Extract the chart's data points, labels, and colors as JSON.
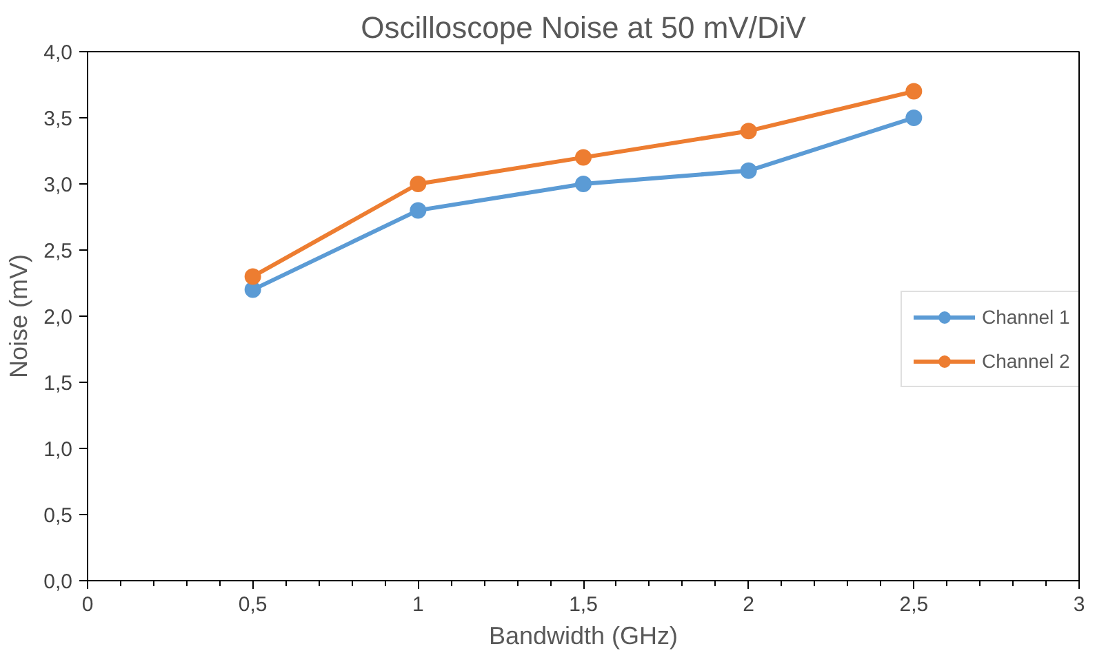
{
  "chart_data": {
    "type": "line",
    "title": "Oscilloscope Noise at 50 mV/DiV",
    "xlabel": "Bandwidth (GHz)",
    "ylabel": "Noise (mV)",
    "x": [
      0.5,
      1,
      1.5,
      2,
      2.5
    ],
    "series": [
      {
        "name": "Channel 1",
        "color": "#5b9bd5",
        "values": [
          2.2,
          2.8,
          3.0,
          3.1,
          3.5
        ]
      },
      {
        "name": "Channel 2",
        "color": "#ed7d31",
        "values": [
          2.3,
          3.0,
          3.2,
          3.4,
          3.7
        ]
      }
    ],
    "xlim": [
      0,
      3
    ],
    "ylim": [
      0,
      4
    ],
    "xticks": [
      0,
      {
        "value": 0.5,
        "label": "0,5"
      },
      1,
      {
        "value": 1.5,
        "label": "1,5"
      },
      2,
      {
        "value": 2.5,
        "label": "2,5"
      },
      3
    ],
    "yticks": [
      {
        "value": 0,
        "label": "0,0"
      },
      {
        "value": 0.5,
        "label": "0,5"
      },
      {
        "value": 1,
        "label": "1,0"
      },
      {
        "value": 1.5,
        "label": "1,5"
      },
      {
        "value": 2,
        "label": "2,0"
      },
      {
        "value": 2.5,
        "label": "2,5"
      },
      {
        "value": 3,
        "label": "3,0"
      },
      {
        "value": 3.5,
        "label": "3,5"
      },
      {
        "value": 4,
        "label": "4,0"
      }
    ],
    "grid": false,
    "legend": "right",
    "marker": "circle",
    "line_style": "solid"
  }
}
